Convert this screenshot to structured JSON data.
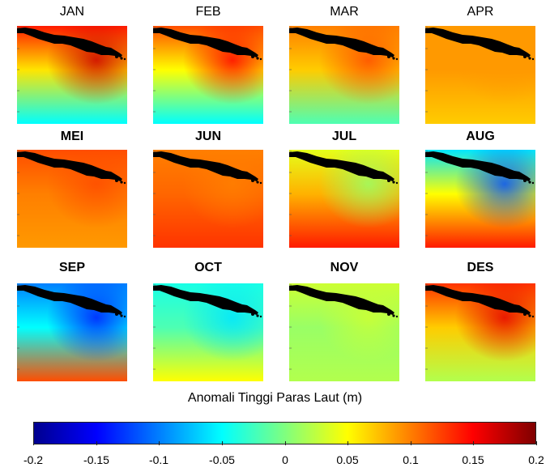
{
  "chart_data": {
    "type": "heatmap",
    "title": "",
    "colorbar": {
      "label": "Anomali Tinggi Paras Laut (m)",
      "range": [
        -0.2,
        0.2
      ],
      "ticks": [
        "-0.2",
        "-0.15",
        "-0.1",
        "-0.05",
        "0",
        "0.05",
        "0.1",
        "0.15",
        "0.2"
      ],
      "colormap": "jet"
    },
    "panels": [
      {
        "label": "JAN",
        "bold": false,
        "north": 0.14,
        "mid": 0.06,
        "south": -0.05,
        "east_shift": 0.03
      },
      {
        "label": "FEB",
        "bold": false,
        "north": 0.12,
        "mid": 0.05,
        "south": -0.05,
        "east_shift": 0.03
      },
      {
        "label": "MAR",
        "bold": false,
        "north": 0.1,
        "mid": 0.07,
        "south": -0.02,
        "east_shift": 0.02
      },
      {
        "label": "APR",
        "bold": false,
        "north": 0.09,
        "mid": 0.09,
        "south": 0.07,
        "east_shift": 0.0
      },
      {
        "label": "MEI",
        "bold": true,
        "north": 0.12,
        "mid": 0.1,
        "south": 0.09,
        "east_shift": 0.0
      },
      {
        "label": "JUN",
        "bold": true,
        "north": 0.1,
        "mid": 0.11,
        "south": 0.13,
        "east_shift": 0.0
      },
      {
        "label": "JUL",
        "bold": true,
        "north": 0.04,
        "mid": 0.08,
        "south": 0.14,
        "east_shift": -0.03
      },
      {
        "label": "AUG",
        "bold": true,
        "north": -0.06,
        "mid": 0.05,
        "south": 0.14,
        "east_shift": -0.06
      },
      {
        "label": "SEP",
        "bold": true,
        "north": -0.1,
        "mid": -0.05,
        "south": 0.12,
        "east_shift": -0.04
      },
      {
        "label": "OCT",
        "bold": true,
        "north": -0.04,
        "mid": -0.02,
        "south": 0.05,
        "east_shift": -0.02
      },
      {
        "label": "NOV",
        "bold": true,
        "north": 0.03,
        "mid": 0.01,
        "south": 0.02,
        "east_shift": 0.0
      },
      {
        "label": "DES",
        "bold": true,
        "north": 0.13,
        "mid": 0.07,
        "south": 0.02,
        "east_shift": 0.03
      }
    ]
  }
}
